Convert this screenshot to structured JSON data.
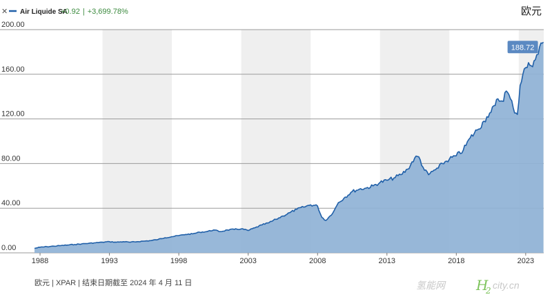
{
  "legend": {
    "close_icon": "close-icon",
    "series_name": "Air Liquide SA",
    "change_abs": "+0.92",
    "change_sep": "|",
    "change_pct": "+3,699.78%"
  },
  "unit_label": "欧元",
  "footer": "欧元 | XPAR | 结束日期截至 2024 年 4 月 11 日",
  "watermark": {
    "text_left": "氢能网",
    "text_h": "H",
    "text_sub": "2",
    "text_right": "city.cn"
  },
  "colors": {
    "line": "#1f5fa8",
    "fill": "#8fb2d6",
    "band": "#efefef",
    "label_bg": "#5b89c2",
    "positive": "#3b8a3e"
  },
  "chart_data": {
    "type": "area",
    "title": "",
    "xlabel": "",
    "ylabel": "欧元",
    "ylim": [
      0,
      200
    ],
    "xlim": [
      1987.6,
      2024.3
    ],
    "yticks": [
      0,
      40,
      80,
      120,
      160,
      200
    ],
    "ytick_labels": [
      "0.00",
      "40.00",
      "80.00",
      "120.00",
      "160.00",
      "200.00"
    ],
    "xticks": [
      1988,
      1993,
      1998,
      2003,
      2008,
      2013,
      2018,
      2023
    ],
    "xtick_labels": [
      "1988",
      "1993",
      "1998",
      "2003",
      "2008",
      "2013",
      "2018",
      "2023"
    ],
    "grid": "horizontal",
    "shaded_bands": [
      [
        1992.5,
        1997.5
      ],
      [
        2002.5,
        2007.5
      ],
      [
        2012.5,
        2017.5
      ],
      [
        2022.5,
        2024.3
      ]
    ],
    "last_value_label": "188.72",
    "series": [
      {
        "name": "Air Liquide SA",
        "x": [
          1987.6,
          1988.0,
          1988.5,
          1989.0,
          1989.5,
          1990.0,
          1990.5,
          1991.0,
          1991.5,
          1992.0,
          1992.5,
          1993.0,
          1993.5,
          1994.0,
          1994.5,
          1995.0,
          1995.5,
          1996.0,
          1996.5,
          1997.0,
          1997.5,
          1998.0,
          1998.5,
          1999.0,
          1999.5,
          2000.0,
          2000.5,
          2001.0,
          2001.5,
          2002.0,
          2002.5,
          2003.0,
          2003.5,
          2004.0,
          2004.5,
          2005.0,
          2005.5,
          2006.0,
          2006.5,
          2007.0,
          2007.5,
          2008.0,
          2008.3,
          2008.6,
          2008.9,
          2009.2,
          2009.5,
          2010.0,
          2010.5,
          2011.0,
          2011.5,
          2012.0,
          2012.5,
          2013.0,
          2013.5,
          2014.0,
          2014.5,
          2015.0,
          2015.3,
          2015.7,
          2016.0,
          2016.3,
          2016.7,
          2017.0,
          2017.5,
          2018.0,
          2018.5,
          2019.0,
          2019.5,
          2020.0,
          2020.2,
          2020.5,
          2020.8,
          2021.0,
          2021.3,
          2021.6,
          2021.9,
          2022.1,
          2022.4,
          2022.6,
          2022.8,
          2023.0,
          2023.3,
          2023.6,
          2023.9,
          2024.1,
          2024.28
        ],
        "values": [
          4,
          5,
          5.5,
          6,
          6.5,
          7,
          7.5,
          8,
          8.5,
          9,
          9.5,
          10,
          9.5,
          10,
          9.5,
          10,
          10.5,
          11,
          12,
          13.5,
          14.5,
          15.5,
          16.5,
          17,
          18.5,
          19,
          20.5,
          19,
          20.5,
          21,
          21.5,
          20,
          22.5,
          25,
          27,
          30,
          33,
          36,
          39,
          41,
          43,
          42,
          32,
          29,
          33,
          38,
          45,
          50,
          55,
          57,
          58,
          60,
          63,
          65,
          67,
          70,
          75,
          85,
          86,
          74,
          70,
          73,
          76,
          80,
          84,
          87,
          92,
          103,
          110,
          118,
          122,
          126,
          132,
          138,
          136,
          145,
          138,
          130,
          124,
          150,
          160,
          166,
          168,
          172,
          178,
          188,
          188.72
        ]
      }
    ]
  }
}
